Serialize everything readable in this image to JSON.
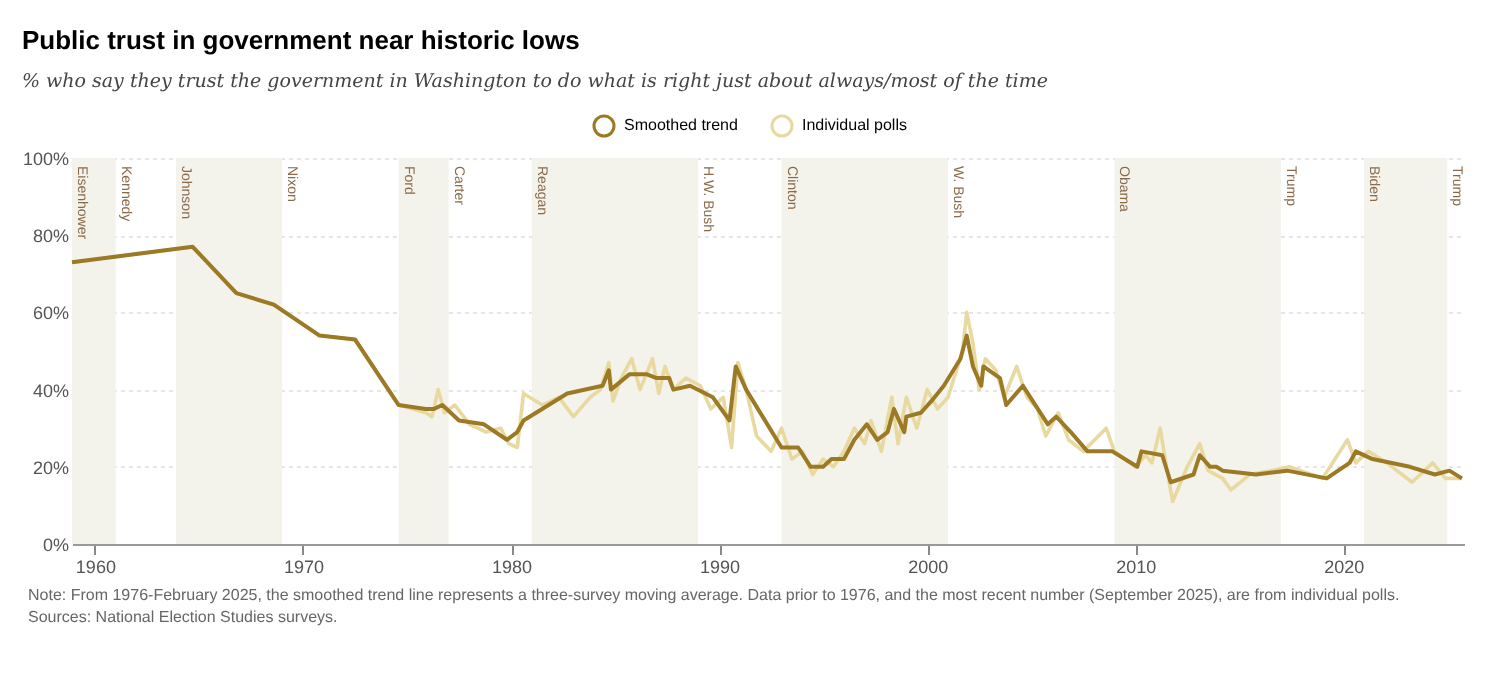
{
  "chart_data": {
    "type": "line",
    "title": "Public trust in government near historic lows",
    "subtitle": "% who say they trust the government in Washington to do what is right just about always/most of the time",
    "xlim": [
      1958.9,
      2025.8
    ],
    "xticks": [
      1960,
      1970,
      1980,
      1990,
      2000,
      2010,
      2020
    ],
    "ylim": [
      0,
      100
    ],
    "yticks": [
      {
        "value": 0,
        "label": "0%"
      },
      {
        "value": 20,
        "label": "20%"
      },
      {
        "value": 40,
        "label": "40%"
      },
      {
        "value": 60,
        "label": "60%"
      },
      {
        "value": 80,
        "label": "80%"
      },
      {
        "value": 100,
        "label": "100%"
      }
    ],
    "grid": "y",
    "legend": "top",
    "marker": "none",
    "line_style": "solid",
    "series": [
      {
        "name": "Smoothed trend",
        "color": "#9c7a25",
        "x": [
          1958.9,
          1964.7,
          1966.8,
          1968.6,
          1970.8,
          1972.5,
          1974.6,
          1975.9,
          1976.3,
          1976.7,
          1977.5,
          1978.7,
          1979.8,
          1980.3,
          1980.6,
          1982.7,
          1984.4,
          1984.7,
          1984.8,
          1985.7,
          1986.5,
          1987,
          1987.6,
          1987.8,
          1988.6,
          1989.7,
          1990.5,
          1990.8,
          1991.3,
          1993,
          1993.8,
          1994.4,
          1995,
          1995.4,
          1996,
          1996.5,
          1997.1,
          1997.6,
          1998.1,
          1998.4,
          1998.9,
          1999,
          1999.7,
          2000.2,
          2000.8,
          2001.6,
          2001.9,
          2002.2,
          2002.6,
          2002.7,
          2003.5,
          2003.8,
          2004.6,
          2005.8,
          2006.2,
          2006.9,
          2007.7,
          2008.9,
          2010.1,
          2010.3,
          2011.3,
          2011.7,
          2012.8,
          2013.1,
          2013.6,
          2013.9,
          2014.2,
          2015.8,
          2017.3,
          2019.2,
          2020.3,
          2020.6,
          2021.4,
          2023.2,
          2024.4,
          2025.1,
          2025.7
        ],
        "values": [
          73,
          77,
          65,
          62,
          54,
          53,
          36,
          35,
          35,
          36,
          32,
          31,
          27,
          29,
          32,
          39,
          41,
          45,
          40,
          44,
          44,
          43,
          43,
          40,
          41,
          38,
          32,
          46,
          40,
          25,
          25,
          20,
          20,
          22,
          22,
          27,
          31,
          27,
          29,
          35,
          29,
          33,
          34,
          37,
          41,
          48,
          54,
          46,
          41,
          46,
          43,
          36,
          41,
          31,
          33,
          29,
          24,
          24,
          20,
          24,
          23,
          16,
          18,
          23,
          20,
          20,
          19,
          18,
          19,
          17,
          21,
          24,
          22,
          20,
          18,
          19,
          17
        ]
      },
      {
        "name": "Individual polls",
        "color": "#e8d9a0",
        "x": [
          1958.9,
          1964.7,
          1966.8,
          1968.6,
          1970.8,
          1972.5,
          1974.6,
          1975.9,
          1976.2,
          1976.5,
          1976.8,
          1977.3,
          1978,
          1978.8,
          1979.5,
          1979.9,
          1980.3,
          1980.6,
          1981.5,
          1982.3,
          1983,
          1983.8,
          1984.3,
          1984.7,
          1984.9,
          1985.3,
          1985.8,
          1986.2,
          1986.8,
          1987.1,
          1987.4,
          1987.8,
          1988.4,
          1989.1,
          1989.6,
          1990.2,
          1990.6,
          1990.9,
          1991.3,
          1991.8,
          1992.5,
          1993,
          1993.5,
          1994,
          1994.5,
          1995,
          1995.5,
          1996,
          1996.5,
          1997,
          1997.3,
          1997.8,
          1998.3,
          1998.6,
          1999,
          1999.5,
          2000,
          2000.5,
          2001,
          2001.7,
          2001.9,
          2002.2,
          2002.5,
          2002.8,
          2003.3,
          2003.7,
          2004.3,
          2004.8,
          2005.3,
          2005.7,
          2006.3,
          2006.8,
          2007.5,
          2008.6,
          2009,
          2010,
          2010.5,
          2010.8,
          2011.2,
          2011.5,
          2011.8,
          2012.5,
          2013.1,
          2013.5,
          2014.2,
          2014.6,
          2015.5,
          2016.5,
          2017.4,
          2019,
          2020.2,
          2020.6,
          2021.2,
          2022.1,
          2023.3,
          2024.3,
          2024.9,
          2025.7
        ],
        "values": [
          73,
          77,
          65,
          62,
          54,
          53,
          36,
          34,
          33,
          40,
          34,
          36,
          31,
          29,
          30,
          26,
          25,
          39,
          36,
          38,
          33,
          38,
          40,
          47,
          37,
          43,
          48,
          40,
          48,
          39,
          46,
          40,
          43,
          41,
          35,
          38,
          25,
          47,
          40,
          28,
          24,
          30,
          22,
          24,
          18,
          22,
          20,
          24,
          30,
          26,
          32,
          24,
          38,
          26,
          38,
          30,
          40,
          35,
          38,
          50,
          60,
          52,
          40,
          48,
          45,
          38,
          46,
          38,
          35,
          28,
          34,
          27,
          24,
          30,
          24,
          20,
          23,
          21,
          30,
          20,
          11,
          20,
          26,
          19,
          17,
          14,
          18,
          19,
          20,
          17,
          27,
          21,
          24,
          21,
          16,
          21,
          17,
          17
        ]
      }
    ],
    "bands": [
      {
        "axis": "x",
        "from": 1958.9,
        "to": 1961,
        "label": "Eisenhower",
        "color": "#f3f3ec"
      },
      {
        "axis": "x",
        "from": 1963.9,
        "to": 1969,
        "label": "Johnson",
        "color": "#f3f3ec"
      },
      {
        "axis": "x",
        "from": 1974.6,
        "to": 1977,
        "label": "Ford",
        "color": "#f3f3ec"
      },
      {
        "axis": "x",
        "from": 1981,
        "to": 1989,
        "label": "Reagan",
        "color": "#f3f3ec"
      },
      {
        "axis": "x",
        "from": 1993,
        "to": 2001,
        "label": "Clinton",
        "color": "#f3f3ec"
      },
      {
        "axis": "x",
        "from": 2009,
        "to": 2017,
        "label": "Obama",
        "color": "#f3f3ec"
      },
      {
        "axis": "x",
        "from": 2021,
        "to": 2025,
        "label": "Biden",
        "color": "#f3f3ec"
      }
    ],
    "annotations": [
      {
        "text": "Kennedy",
        "x": 1961,
        "y": 100
      },
      {
        "text": "Nixon",
        "x": 1969,
        "y": 100
      },
      {
        "text": "Carter",
        "x": 1977,
        "y": 100
      },
      {
        "text": "H.W. Bush",
        "x": 1989,
        "y": 100
      },
      {
        "text": "W. Bush",
        "x": 2001,
        "y": 100
      },
      {
        "text": "Trump",
        "x": 2017,
        "y": 100
      },
      {
        "text": "Trump",
        "x": 2025,
        "y": 100
      },
      "Note: From 1976-February 2025, the smoothed trend line represents a three-survey moving average. Data prior to 1976, and the most recent number (September 2025), are from individual polls.",
      "Sources: National Election Studies surveys."
    ]
  }
}
